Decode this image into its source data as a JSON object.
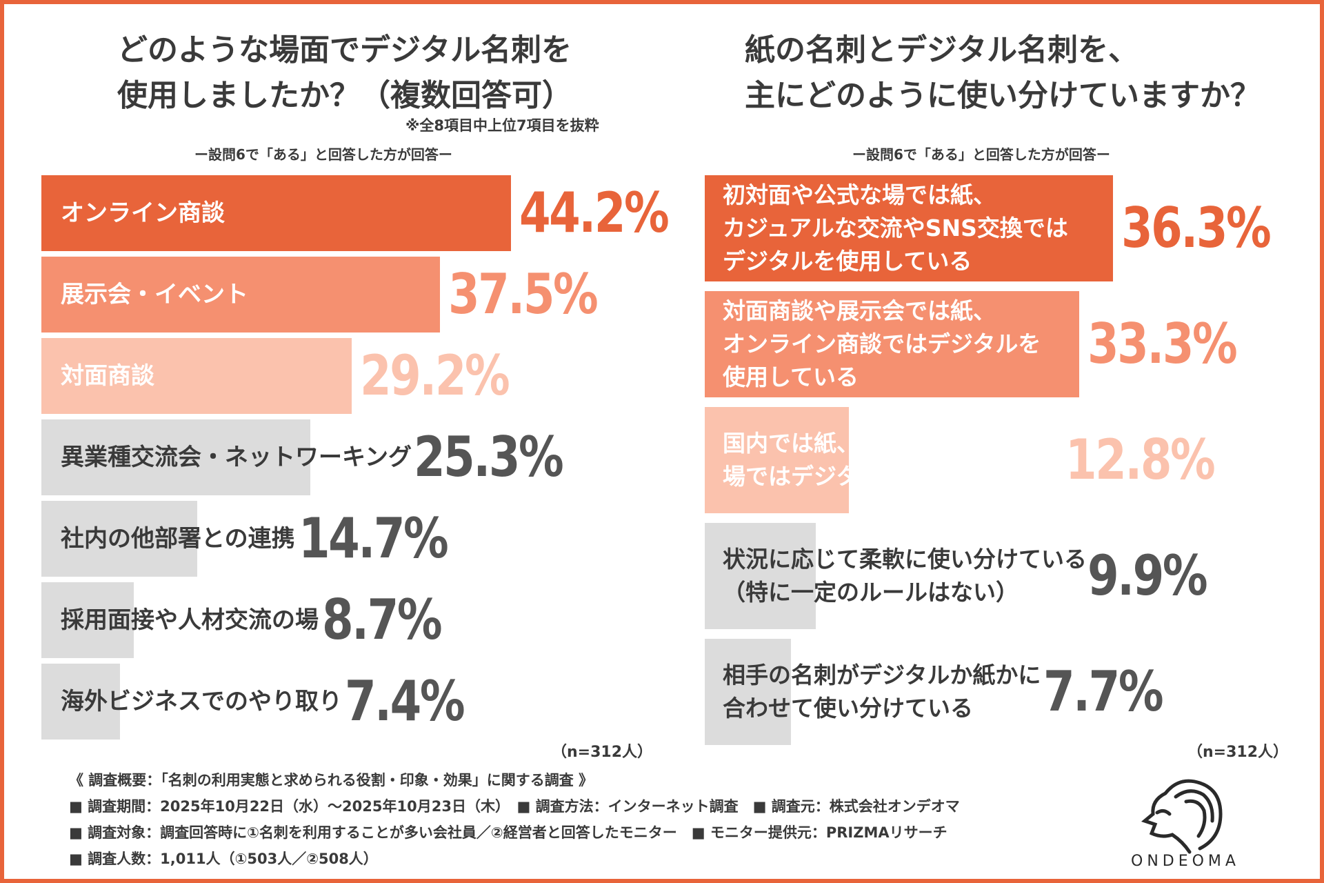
{
  "colors": {
    "dark": "#e8643a",
    "mid": "#f59070",
    "light": "#fbc2ad",
    "gray": "#dcdcdc",
    "text": "#3a3a3a",
    "white": "#ffffff"
  },
  "left": {
    "title_line1": "どのような場面でデジタル名刺を",
    "title_line2": "使用しましたか？（複数回答可）",
    "note": "※全8項目中上位7項目を抜粋",
    "subtitle": "ー設問6で「ある」と回答した方が回答ー",
    "n": "（n=312人）"
  },
  "right": {
    "title_line1": "紙の名刺とデジタル名刺を、",
    "title_line2": "主にどのように使い分けていますか？",
    "subtitle": "ー設問6で「ある」と回答した方が回答ー",
    "n": "（n=312人）"
  },
  "chart_data": [
    {
      "type": "bar",
      "orientation": "horizontal",
      "title": "どのような場面でデジタル名刺を使用しましたか？（複数回答可）",
      "unit": "%",
      "categories": [
        "オンライン商談",
        "展示会・イベント",
        "対面商談",
        "異業種交流会・ネットワーキング",
        "社内の他部署との連携",
        "採用面接や人材交流の場",
        "海外ビジネスでのやり取り"
      ],
      "values": [
        44.2,
        37.5,
        29.2,
        25.3,
        14.7,
        8.7,
        7.4
      ],
      "value_labels": [
        "44.2%",
        "37.5%",
        "29.2%",
        "25.3%",
        "14.7%",
        "8.7%",
        "7.4%"
      ],
      "color_tiers": [
        "dark",
        "mid",
        "light",
        "gray",
        "gray",
        "gray",
        "gray"
      ],
      "xlim": [
        0,
        50
      ]
    },
    {
      "type": "bar",
      "orientation": "horizontal",
      "title": "紙の名刺とデジタル名刺を、主にどのように使い分けていますか？",
      "unit": "%",
      "categories": [
        [
          "初対面や公式な場では紙、",
          "カジュアルな交流やSNS交換では",
          "デジタルを使用している"
        ],
        [
          "対面商談や展示会では紙、",
          "オンライン商談ではデジタルを",
          "使用している"
        ],
        [
          "国内では紙、海外やオンラインの",
          "場ではデジタルを使用している"
        ],
        [
          "状況に応じて柔軟に使い分けている",
          "（特に一定のルールはない）"
        ],
        [
          "相手の名刺がデジタルか紙かに",
          "合わせて使い分けている"
        ]
      ],
      "values": [
        36.3,
        33.3,
        12.8,
        9.9,
        7.7
      ],
      "value_labels": [
        "36.3%",
        "33.3%",
        "12.8%",
        "9.9%",
        "7.7%"
      ],
      "color_tiers": [
        "dark",
        "mid",
        "light",
        "gray",
        "gray"
      ],
      "xlim": [
        0,
        40.5
      ]
    }
  ],
  "footer": {
    "line1": "《 調査概要：「名刺の利用実態と求められる役割・印象・効果」に関する調査 》",
    "line2": "■ 調査期間：2025年10月22日（水）〜2025年10月23日（木）　■ 調査方法：インターネット調査　■ 調査元：株式会社オンデオマ",
    "line3": "■ 調査対象：調査回答時に①名刺を利用することが多い会社員／②経営者と回答したモニター　■ モニター提供元：PRIZMAリサーチ",
    "line4": "■ 調査人数：1,011人（①503人／②508人）"
  },
  "logo": {
    "icon": "lion-head-icon",
    "text": "ONDEOMA"
  }
}
